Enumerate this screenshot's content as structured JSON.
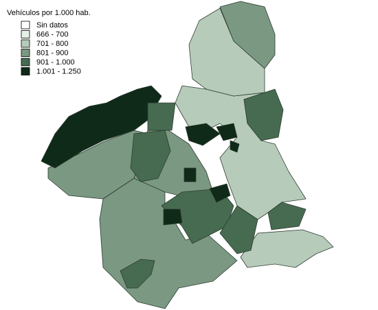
{
  "legend": {
    "title": "Vehículos por 1.000 hab.",
    "items": [
      {
        "label": "Sin datos",
        "color": "#ffffff"
      },
      {
        "label": "666 - 700",
        "color": "#e6efe6"
      },
      {
        "label": "701 - 800",
        "color": "#b7cbbb"
      },
      {
        "label": "801 - 900",
        "color": "#7b9882"
      },
      {
        "label": "901 - 1.000",
        "color": "#476b50"
      },
      {
        "label": "1.001 - 1.250",
        "color": "#0f2a18"
      }
    ]
  }
}
